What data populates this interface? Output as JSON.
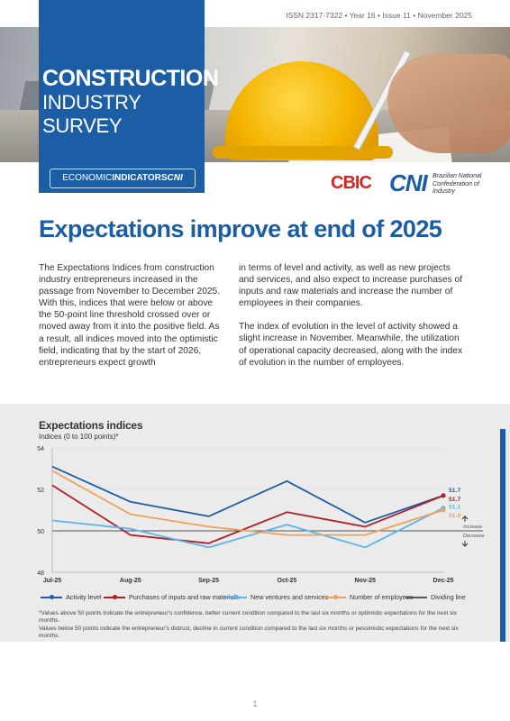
{
  "header": {
    "issn_line": "ISSN 2317-7322 • Year 16 • Issue 11 • November 2025",
    "title_line1": "CONSTRUCTION",
    "title_line2": "INDUSTRY SURVEY",
    "badge_part1": "ECONOMIC",
    "badge_part2": "INDICATORS",
    "badge_part3": "CNI",
    "logo_cbic": "CBIC",
    "logo_cni": "CNI",
    "logo_cni_text": "Brazilian National Confederation of Industry"
  },
  "article": {
    "headline": "Expectations improve at end of 2025",
    "paragraphs_col1": [
      "The Expectations Indices from construction industry entrepreneurs increased in the passage from November to December 2025. With this, indices that were below or above the 50-point line threshold crossed over or moved away from it into the positive field. As a result, all indices moved into the optimistic field, indicating that by the start of 2026, entrepreneurs expect growth"
    ],
    "paragraphs_col2": [
      "in terms of level and activity, as well as new projects and services, and also expect to increase purchases of inputs and raw materials and increase the number of employees in their companies.",
      "The index of evolution in the level of activity showed a slight increase in November. Meanwhile, the utilization of operational capacity decreased, along with the index of evolution in the number of employees."
    ]
  },
  "chart_data": {
    "type": "line",
    "title": "Expectations indices",
    "subtitle": "Indices (0 to 100 points)*",
    "categories": [
      "Jul-25",
      "Aug-25",
      "Sep-25",
      "Oct-25",
      "Nov-25",
      "Dec-25"
    ],
    "y_ticks": [
      "54",
      "52",
      "50",
      "48"
    ],
    "ylim": [
      48,
      54
    ],
    "threshold": 50,
    "series": [
      {
        "name": "Activity level",
        "color": "#1b5ea6",
        "values": [
          53.1,
          51.4,
          50.7,
          52.4,
          50.4,
          51.7
        ]
      },
      {
        "name": "Purchases of inputs and raw materials",
        "color": "#b01e23",
        "values": [
          52.2,
          49.8,
          49.4,
          50.9,
          50.2,
          51.7
        ]
      },
      {
        "name": "New ventures and services",
        "color": "#5bb5ea",
        "values": [
          50.5,
          50.1,
          49.2,
          50.3,
          49.2,
          51.1
        ]
      },
      {
        "name": "Number of employees",
        "color": "#f0a05a",
        "values": [
          52.9,
          50.8,
          50.2,
          49.8,
          49.8,
          51.0
        ]
      }
    ],
    "end_labels": [
      "51.7",
      "51.7",
      "51.1",
      "51.0"
    ],
    "threshold_label": "Dividing line",
    "increase_label": "Increase",
    "decrease_label": "Decrease",
    "note_line1": "*Values above 50 points indicate the entrepreneur's confidence, better current condition compared to the last six months or optimistic expectations for the next six months.",
    "note_line2": "Values below 50 points indicate the entrepreneur's distrust, decline in current condition compared to the last six months or pessimistic expectations for the next six months.",
    "legend_position": "bottom"
  },
  "footer": {
    "page_number": "1"
  }
}
